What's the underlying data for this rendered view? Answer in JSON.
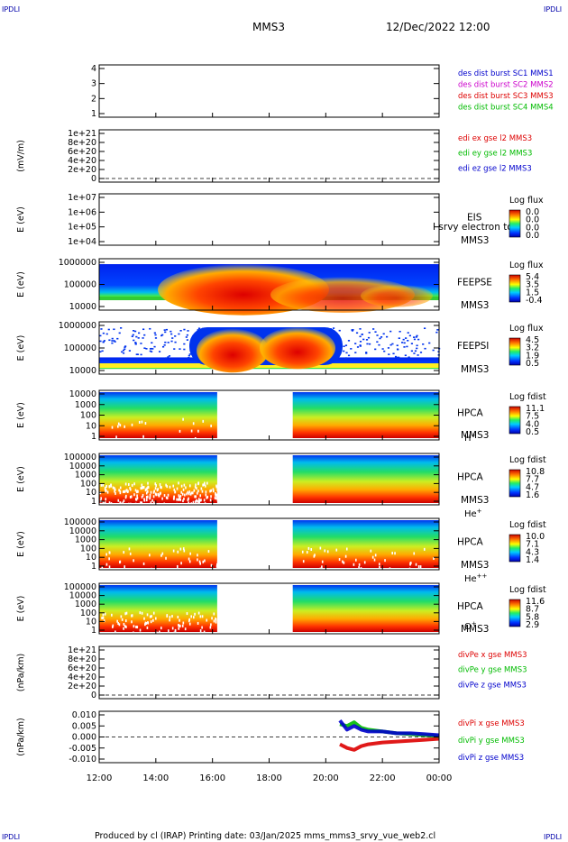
{
  "corner_labels": {
    "top_left": "IPDLI",
    "top_right": "IPDLI",
    "bottom_left": "IPDLI",
    "bottom_right": "IPDLI"
  },
  "header": {
    "mission": "MMS3",
    "date": "12/Dec/2022 12:00"
  },
  "footer": {
    "text": "Produced by cl (IRAP)   Printing date: 03/Jan/2025   mms_mms3_srvy_vue_web2.cl"
  },
  "colors": {
    "blue": "#0000cc",
    "magenta": "#cc00cc",
    "red": "#dd0000",
    "green": "#00bb00"
  },
  "chart_data": [
    {
      "type": "line",
      "id": "p1",
      "x": [
        "12:00",
        "14:00",
        "16:00",
        "18:00",
        "20:00",
        "22:00",
        "00:00"
      ],
      "y_ticks": [
        "4",
        "3",
        "2",
        "1"
      ],
      "legend": [
        {
          "label": "des dist burst SC1 MMS1",
          "color": "#0000cc"
        },
        {
          "label": "des dist burst SC2 MMS2",
          "color": "#cc00cc"
        },
        {
          "label": "des dist burst SC3 MMS3",
          "color": "#dd0000"
        },
        {
          "label": "des dist burst SC4 MMS4",
          "color": "#00bb00"
        }
      ]
    },
    {
      "type": "line",
      "id": "p2",
      "ylabel": "(mV/m)",
      "y_ticks": [
        "1e+21",
        "8e+20",
        "6e+20",
        "4e+20",
        "2e+20",
        "0"
      ],
      "legend": [
        {
          "label": "edi ex gse l2 MMS3",
          "color": "#dd0000"
        },
        {
          "label": "edi ey gse l2 MMS3",
          "color": "#00bb00"
        },
        {
          "label": "edi ez gse l2 MMS3",
          "color": "#0000cc"
        }
      ]
    },
    {
      "type": "heatmap",
      "id": "p3",
      "ylabel": "E (eV)",
      "y_ticks": [
        "1e+07",
        "1e+06",
        "1e+05",
        "1e+04"
      ],
      "instrument": "EIS",
      "sc": "MMS3",
      "overlay_text": "I srvy electron to",
      "colorbar": {
        "title": "Log flux",
        "ticks": [
          "0.0",
          "0.0",
          "0.0",
          "0.0"
        ]
      }
    },
    {
      "type": "heatmap",
      "id": "p4",
      "ylabel": "E (eV)",
      "y_ticks": [
        "1000000",
        "100000",
        "10000"
      ],
      "instrument": "FEEPSE",
      "sc": "MMS3",
      "colorbar": {
        "title": "Log flux",
        "ticks": [
          "5.4",
          "3.5",
          "1.5",
          "-0.4"
        ]
      }
    },
    {
      "type": "heatmap",
      "id": "p5",
      "ylabel": "E (eV)",
      "y_ticks": [
        "1000000",
        "100000",
        "10000"
      ],
      "instrument": "FEEPSI",
      "sc": "MMS3",
      "colorbar": {
        "title": "Log flux",
        "ticks": [
          "4.5",
          "3.2",
          "1.9",
          "0.5"
        ]
      }
    },
    {
      "type": "heatmap",
      "id": "p6",
      "ylabel": "E (eV)",
      "y_ticks": [
        "10000",
        "1000",
        "100",
        "10",
        "1"
      ],
      "instrument": "HPCA",
      "sc": "MMS3",
      "species": "H",
      "charge": "+",
      "data_gap": [
        "16:10",
        "18:50"
      ],
      "colorbar": {
        "title": "Log fdist",
        "ticks": [
          "11.1",
          "7.5",
          "4.0",
          "0.5"
        ]
      }
    },
    {
      "type": "heatmap",
      "id": "p7",
      "ylabel": "E (eV)",
      "y_ticks": [
        "100000",
        "10000",
        "1000",
        "100",
        "10",
        "1"
      ],
      "instrument": "HPCA",
      "sc": "MMS3",
      "species": "He",
      "charge": "+",
      "data_gap": [
        "16:10",
        "18:50"
      ],
      "colorbar": {
        "title": "Log fdist",
        "ticks": [
          "10.8",
          "7.7",
          "4.7",
          "1.6"
        ]
      }
    },
    {
      "type": "heatmap",
      "id": "p8",
      "ylabel": "E (eV)",
      "y_ticks": [
        "100000",
        "10000",
        "1000",
        "100",
        "10",
        "1"
      ],
      "instrument": "HPCA",
      "sc": "MMS3",
      "species": "He",
      "charge": "++",
      "data_gap": [
        "16:10",
        "18:50"
      ],
      "colorbar": {
        "title": "Log fdist",
        "ticks": [
          "10.0",
          "7.1",
          "4.3",
          "1.4"
        ]
      }
    },
    {
      "type": "heatmap",
      "id": "p9",
      "ylabel": "E (eV)",
      "y_ticks": [
        "100000",
        "10000",
        "1000",
        "100",
        "10",
        "1"
      ],
      "instrument": "HPCA",
      "sc": "MMS3",
      "species": "O",
      "charge": "+",
      "data_gap": [
        "16:10",
        "18:50"
      ],
      "colorbar": {
        "title": "Log fdist",
        "ticks": [
          "11.6",
          "8.7",
          "5.8",
          "2.9"
        ]
      }
    },
    {
      "type": "line",
      "id": "p10",
      "ylabel": "(nPa/km)",
      "y_ticks": [
        "1e+21",
        "8e+20",
        "6e+20",
        "4e+20",
        "2e+20",
        "0"
      ],
      "legend": [
        {
          "label": "divPe x gse MMS3",
          "color": "#dd0000"
        },
        {
          "label": "divPe y gse MMS3",
          "color": "#00bb00"
        },
        {
          "label": "divPe z gse MMS3",
          "color": "#0000cc"
        }
      ]
    },
    {
      "type": "line",
      "id": "p11",
      "ylabel": "(nPa/km)",
      "y_ticks": [
        "0.010",
        "0.005",
        "0.000",
        "-0.005",
        "-0.010"
      ],
      "ylim": [
        -0.014,
        0.014
      ],
      "series": [
        {
          "name": "divPi x gse MMS3",
          "color": "#dd0000",
          "x": [
            "20:30",
            "20:45",
            "21:00",
            "21:15",
            "21:30",
            "22:00",
            "22:30",
            "23:00",
            "23:30",
            "00:00"
          ],
          "values": [
            -0.004,
            -0.006,
            -0.007,
            -0.005,
            -0.004,
            -0.003,
            -0.0025,
            -0.002,
            -0.0015,
            -0.001
          ]
        },
        {
          "name": "divPi y gse MMS3",
          "color": "#00bb00",
          "x": [
            "20:30",
            "20:45",
            "21:00",
            "21:15",
            "21:30",
            "22:00",
            "22:30",
            "23:00",
            "23:30",
            "00:00"
          ],
          "values": [
            0.007,
            0.006,
            0.008,
            0.005,
            0.004,
            0.003,
            0.002,
            0.0015,
            0.001,
            0.0005
          ]
        },
        {
          "name": "divPi z gse MMS3",
          "color": "#0000cc",
          "x": [
            "20:30",
            "20:45",
            "21:00",
            "21:15",
            "21:30",
            "22:00",
            "22:30",
            "23:00",
            "23:30",
            "00:00"
          ],
          "values": [
            0.009,
            0.004,
            0.006,
            0.004,
            0.003,
            0.003,
            0.002,
            0.002,
            0.0015,
            0.001
          ]
        }
      ]
    }
  ]
}
